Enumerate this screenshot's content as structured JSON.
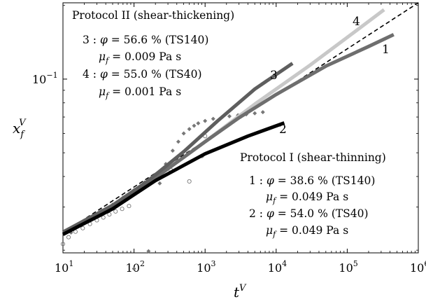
{
  "chart_data": {
    "type": "line",
    "xscale": "log",
    "yscale": "log",
    "xlim": [
      10,
      1000000
    ],
    "ylim": [
      0.0195,
      0.205
    ],
    "x_ticks": [
      {
        "value": 10,
        "base": "10",
        "exp": "1"
      },
      {
        "value": 100,
        "base": "10",
        "exp": "2"
      },
      {
        "value": 1000,
        "base": "10",
        "exp": "3"
      },
      {
        "value": 10000,
        "base": "10",
        "exp": "4"
      },
      {
        "value": 100000,
        "base": "10",
        "exp": "5"
      },
      {
        "value": 1000000,
        "base": "10",
        "exp": "6"
      }
    ],
    "y_ticks": [
      {
        "value": 0.1,
        "base": "10",
        "exp": "−1"
      }
    ],
    "xlabel": {
      "main": "t",
      "sup": "V"
    },
    "ylabel": {
      "main": "x",
      "sub": "f",
      "sup": "V"
    },
    "fit_line": {
      "style": "dashed",
      "color": "#000000",
      "points": [
        [
          10,
          0.0235
        ],
        [
          1000000,
          0.205
        ]
      ]
    },
    "series": [
      {
        "label": "1",
        "color": "#6e6e6e",
        "points": [
          [
            10,
            0.0237
          ],
          [
            50,
            0.0302
          ],
          [
            200,
            0.0395
          ],
          [
            1000,
            0.0555
          ],
          [
            3000,
            0.0695
          ],
          [
            10000,
            0.0865
          ],
          [
            50000,
            0.113
          ],
          [
            200000,
            0.136
          ],
          [
            450000,
            0.152
          ]
        ]
      },
      {
        "label": "2",
        "color": "#000000",
        "points": [
          [
            10,
            0.0232
          ],
          [
            50,
            0.0295
          ],
          [
            200,
            0.0385
          ],
          [
            1000,
            0.0495
          ],
          [
            4000,
            0.0585
          ],
          [
            13000,
            0.0662
          ]
        ]
      },
      {
        "label": "3",
        "color": "#5e5e5e",
        "points": [
          [
            10,
            0.0237
          ],
          [
            50,
            0.0305
          ],
          [
            150,
            0.038
          ],
          [
            500,
            0.0505
          ],
          [
            1500,
            0.0675
          ],
          [
            5000,
            0.091
          ],
          [
            17000,
            0.116
          ]
        ]
      },
      {
        "label": "4",
        "color": "#c8c8c8",
        "points": [
          [
            10,
            0.0237
          ],
          [
            50,
            0.0302
          ],
          [
            200,
            0.0395
          ],
          [
            1000,
            0.0555
          ],
          [
            5000,
            0.079
          ],
          [
            30000,
            0.114
          ],
          [
            100000,
            0.148
          ],
          [
            330000,
            0.192
          ]
        ]
      }
    ],
    "marker_series": [
      {
        "marker": "filled-diamond",
        "color": "#777777",
        "points": [
          [
            13,
            0.0236
          ],
          [
            18,
            0.0255
          ],
          [
            25,
            0.0272
          ],
          [
            35,
            0.029
          ],
          [
            50,
            0.0307
          ],
          [
            70,
            0.0328
          ],
          [
            100,
            0.0352
          ],
          [
            140,
            0.0378
          ],
          [
            200,
            0.0408
          ],
          [
            230,
            0.0375
          ],
          [
            280,
            0.045
          ],
          [
            350,
            0.051
          ],
          [
            420,
            0.0555
          ],
          [
            500,
            0.06
          ],
          [
            600,
            0.0625
          ],
          [
            700,
            0.0645
          ],
          [
            800,
            0.066
          ],
          [
            1000,
            0.0675
          ],
          [
            1300,
            0.0688
          ],
          [
            1700,
            0.0697
          ],
          [
            2200,
            0.0705
          ],
          [
            2900,
            0.0712
          ],
          [
            3800,
            0.0718
          ],
          [
            5000,
            0.0725
          ],
          [
            6500,
            0.0733
          ],
          [
            160,
            0.0198
          ],
          [
            100,
            0.0168
          ]
        ]
      },
      {
        "marker": "open-circle",
        "color": "#777777",
        "points": [
          [
            10,
            0.0212
          ],
          [
            12,
            0.0226
          ],
          [
            15,
            0.0238
          ],
          [
            19,
            0.0246
          ],
          [
            24,
            0.0256
          ],
          [
            30,
            0.0265
          ],
          [
            37,
            0.0272
          ],
          [
            45,
            0.028
          ],
          [
            55,
            0.0288
          ],
          [
            68,
            0.0295
          ],
          [
            85,
            0.0303
          ],
          [
            330,
            0.0425
          ],
          [
            600,
            0.0382
          ],
          [
            900,
            0.0485
          ],
          [
            1000,
            0.0585
          ]
        ]
      }
    ],
    "annotations": {
      "protocol2": {
        "title": "Protocol II (shear-thickening)",
        "lines": [
          {
            "lead": "3 : ",
            "sym": "φ",
            "rest": " = 56.6 % (TS140)"
          },
          {
            "lead": "",
            "sym": "μ",
            "sub": "f",
            "rest": " = 0.009  Pa s"
          },
          {
            "lead": "4 : ",
            "sym": "φ",
            "rest": " = 55.0 % (TS40)"
          },
          {
            "lead": "",
            "sym": "μ",
            "sub": "f",
            "rest": " = 0.001  Pa s"
          }
        ]
      },
      "protocol1": {
        "title": "Protocol I (shear-thinning)",
        "lines": [
          {
            "lead": "1 : ",
            "sym": "φ",
            "rest": " = 38.6 % (TS140)"
          },
          {
            "lead": "",
            "sym": "μ",
            "sub": "f",
            "rest": " = 0.049  Pa s"
          },
          {
            "lead": "2 : ",
            "sym": "φ",
            "rest": " = 54.0 % (TS40)"
          },
          {
            "lead": "",
            "sym": "μ",
            "sub": "f",
            "rest": " = 0.049  Pa s"
          }
        ]
      }
    }
  }
}
